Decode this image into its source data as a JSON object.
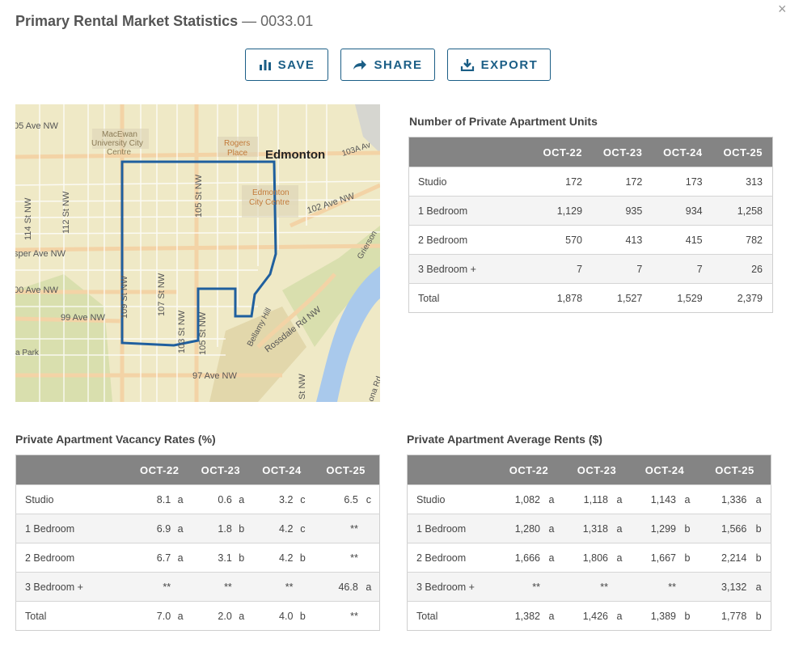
{
  "header": {
    "title": "Primary Rental Market Statistics",
    "separator": "—",
    "code": "0033.01",
    "close_label": "×"
  },
  "toolbar": {
    "save_label": "SAVE",
    "share_label": "SHARE",
    "export_label": "EXPORT"
  },
  "map": {
    "labels": {
      "ave105": "05 Ave NW",
      "macewan1": "MacEwan",
      "macewan2": "University City",
      "macewan3": "Centre",
      "rogers1": "Rogers",
      "rogers2": "Place",
      "edmonton": "Edmonton",
      "ave103a": "103A Av",
      "cc1": "Edmonton",
      "cc2": "City Centre",
      "ave102": "102 Ave NW",
      "st114": "114 St NW",
      "st112": "112 St NW",
      "st105a": "105 St NW",
      "jasper": "sper Ave NW",
      "grierson": "Grierson",
      "ave100": "00 Ave NW",
      "st109": "109 St NW",
      "st107": "107 St NW",
      "ave99": "99 Ave NW",
      "st103": "103 St NW",
      "st105b": "105 St NW",
      "bellamy": "Bellamy Hill",
      "rossdale": "Rossdale Rd NW",
      "park": "a Park",
      "ave97": "97 Ave NW",
      "stnw": "St NW",
      "ona": "ona Rd"
    }
  },
  "units_table": {
    "title": "Number of Private Apartment Units",
    "columns": [
      "OCT-22",
      "OCT-23",
      "OCT-24",
      "OCT-25"
    ],
    "rows": [
      {
        "label": "Studio",
        "values": [
          "172",
          "172",
          "173",
          "313"
        ]
      },
      {
        "label": "1 Bedroom",
        "values": [
          "1,129",
          "935",
          "934",
          "1,258"
        ]
      },
      {
        "label": "2 Bedroom",
        "values": [
          "570",
          "413",
          "415",
          "782"
        ]
      },
      {
        "label": "3 Bedroom +",
        "values": [
          "7",
          "7",
          "7",
          "26"
        ]
      },
      {
        "label": "Total",
        "values": [
          "1,878",
          "1,527",
          "1,529",
          "2,379"
        ]
      }
    ]
  },
  "vacancy_table": {
    "title": "Private Apartment Vacancy Rates (%)",
    "columns": [
      "OCT-22",
      "OCT-23",
      "OCT-24",
      "OCT-25"
    ],
    "rows": [
      {
        "label": "Studio",
        "cells": [
          [
            "8.1",
            "a"
          ],
          [
            "0.6",
            "a"
          ],
          [
            "3.2",
            "c"
          ],
          [
            "6.5",
            "c"
          ]
        ]
      },
      {
        "label": "1 Bedroom",
        "cells": [
          [
            "6.9",
            "a"
          ],
          [
            "1.8",
            "b"
          ],
          [
            "4.2",
            "c"
          ],
          [
            "**",
            ""
          ]
        ]
      },
      {
        "label": "2 Bedroom",
        "cells": [
          [
            "6.7",
            "a"
          ],
          [
            "3.1",
            "b"
          ],
          [
            "4.2",
            "b"
          ],
          [
            "**",
            ""
          ]
        ]
      },
      {
        "label": "3 Bedroom +",
        "cells": [
          [
            "**",
            ""
          ],
          [
            "**",
            ""
          ],
          [
            "**",
            ""
          ],
          [
            "46.8",
            "a"
          ]
        ]
      },
      {
        "label": "Total",
        "cells": [
          [
            "7.0",
            "a"
          ],
          [
            "2.0",
            "a"
          ],
          [
            "4.0",
            "b"
          ],
          [
            "**",
            ""
          ]
        ]
      }
    ]
  },
  "rents_table": {
    "title": "Private Apartment Average Rents ($)",
    "columns": [
      "OCT-22",
      "OCT-23",
      "OCT-24",
      "OCT-25"
    ],
    "rows": [
      {
        "label": "Studio",
        "cells": [
          [
            "1,082",
            "a"
          ],
          [
            "1,118",
            "a"
          ],
          [
            "1,143",
            "a"
          ],
          [
            "1,336",
            "a"
          ]
        ]
      },
      {
        "label": "1 Bedroom",
        "cells": [
          [
            "1,280",
            "a"
          ],
          [
            "1,318",
            "a"
          ],
          [
            "1,299",
            "b"
          ],
          [
            "1,566",
            "b"
          ]
        ]
      },
      {
        "label": "2 Bedroom",
        "cells": [
          [
            "1,666",
            "a"
          ],
          [
            "1,806",
            "a"
          ],
          [
            "1,667",
            "b"
          ],
          [
            "2,214",
            "b"
          ]
        ]
      },
      {
        "label": "3 Bedroom +",
        "cells": [
          [
            "**",
            ""
          ],
          [
            "**",
            ""
          ],
          [
            "**",
            ""
          ],
          [
            "3,132",
            "a"
          ]
        ]
      },
      {
        "label": "Total",
        "cells": [
          [
            "1,382",
            "a"
          ],
          [
            "1,426",
            "a"
          ],
          [
            "1,389",
            "b"
          ],
          [
            "1,778",
            "b"
          ]
        ]
      }
    ]
  },
  "colors": {
    "accent": "#1b5e86",
    "header_bg": "#848484",
    "boundary": "#1f5f9e",
    "river": "#a9c9ec"
  }
}
